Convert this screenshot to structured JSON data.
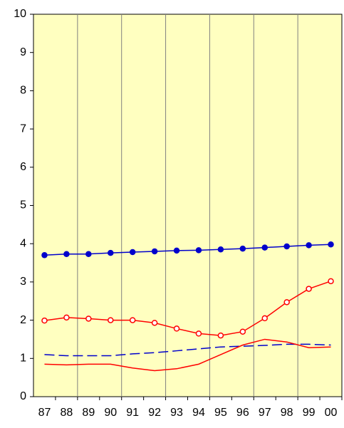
{
  "chart_data": {
    "type": "line",
    "categories": [
      "87",
      "88",
      "89",
      "90",
      "91",
      "92",
      "93",
      "94",
      "95",
      "96",
      "97",
      "98",
      "99",
      "00"
    ],
    "ylim": [
      0,
      10
    ],
    "yticks": [
      0,
      1,
      2,
      3,
      4,
      5,
      6,
      7,
      8,
      9,
      10
    ],
    "plot_background": "#ffffc0",
    "series": [
      {
        "color": "#0000cc",
        "marker": "filled",
        "dash": false,
        "values": [
          3.7,
          3.73,
          3.73,
          3.76,
          3.78,
          3.8,
          3.82,
          3.83,
          3.85,
          3.87,
          3.9,
          3.93,
          3.96,
          3.98
        ]
      },
      {
        "color": "#ff0000",
        "marker": "hollow",
        "dash": false,
        "values": [
          1.99,
          2.07,
          2.04,
          2.0,
          2.0,
          1.93,
          1.78,
          1.65,
          1.6,
          1.7,
          2.05,
          2.47,
          2.82,
          3.02
        ]
      },
      {
        "color": "#0000cc",
        "marker": "none",
        "dash": true,
        "values": [
          1.1,
          1.07,
          1.07,
          1.07,
          1.12,
          1.15,
          1.2,
          1.25,
          1.3,
          1.32,
          1.34,
          1.37,
          1.37,
          1.35
        ]
      },
      {
        "color": "#ff0000",
        "marker": "none",
        "dash": false,
        "values": [
          0.85,
          0.83,
          0.85,
          0.85,
          0.75,
          0.68,
          0.73,
          0.85,
          1.1,
          1.35,
          1.5,
          1.43,
          1.28,
          1.3
        ]
      }
    ]
  }
}
